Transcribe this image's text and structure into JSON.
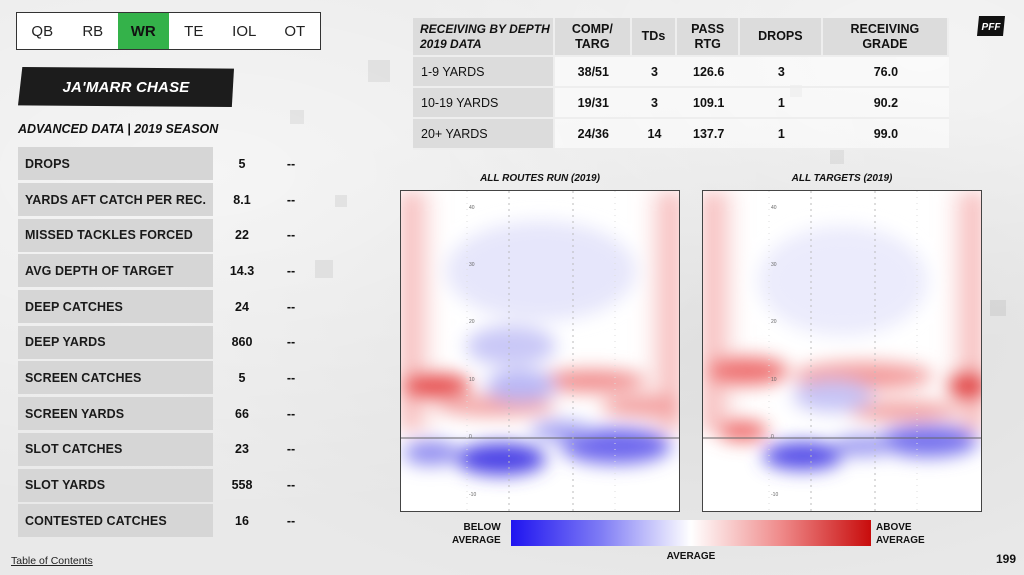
{
  "position_tabs": [
    {
      "label": "QB",
      "active": false
    },
    {
      "label": "RB",
      "active": false
    },
    {
      "label": "WR",
      "active": true
    },
    {
      "label": "TE",
      "active": false
    },
    {
      "label": "IOL",
      "active": false
    },
    {
      "label": "OT",
      "active": false
    }
  ],
  "player": {
    "name": "JA'MARR CHASE"
  },
  "advanced": {
    "heading": "ADVANCED DATA | 2019 SEASON",
    "rows": [
      {
        "label": "DROPS",
        "value": "5",
        "extra": "--"
      },
      {
        "label": "YARDS AFT CATCH PER REC.",
        "value": "8.1",
        "extra": "--"
      },
      {
        "label": "MISSED TACKLES FORCED",
        "value": "22",
        "extra": "--"
      },
      {
        "label": "AVG DEPTH OF TARGET",
        "value": "14.3",
        "extra": "--"
      },
      {
        "label": "DEEP CATCHES",
        "value": "24",
        "extra": "--"
      },
      {
        "label": "DEEP YARDS",
        "value": "860",
        "extra": "--"
      },
      {
        "label": "SCREEN CATCHES",
        "value": "5",
        "extra": "--"
      },
      {
        "label": "SCREEN YARDS",
        "value": "66",
        "extra": "--"
      },
      {
        "label": "SLOT CATCHES",
        "value": "23",
        "extra": "--"
      },
      {
        "label": "SLOT YARDS",
        "value": "558",
        "extra": "--"
      },
      {
        "label": "CONTESTED CATCHES",
        "value": "16",
        "extra": "--"
      }
    ]
  },
  "depth_table": {
    "title_line1": "RECEIVING BY DEPTH",
    "title_line2": "2019 DATA",
    "headers": [
      {
        "line1": "COMP/",
        "line2": "TARG"
      },
      {
        "line1": "TDs",
        "line2": ""
      },
      {
        "line1": "PASS",
        "line2": "RTG"
      },
      {
        "line1": "DROPS",
        "line2": ""
      },
      {
        "line1": "RECEIVING",
        "line2": "GRADE"
      }
    ],
    "rows": [
      {
        "label": "1-9 YARDS",
        "cells": [
          "38/51",
          "3",
          "126.6",
          "3",
          "76.0"
        ]
      },
      {
        "label": "10-19 YARDS",
        "cells": [
          "19/31",
          "3",
          "109.1",
          "1",
          "90.2"
        ]
      },
      {
        "label": "20+ YARDS",
        "cells": [
          "24/36",
          "14",
          "137.7",
          "1",
          "99.0"
        ]
      }
    ]
  },
  "heatmaps": [
    {
      "title": "ALL ROUTES RUN (2019)",
      "yard_labels": [
        "40",
        "30",
        "20",
        "10",
        "0",
        "-10"
      ]
    },
    {
      "title": "ALL TARGETS (2019)",
      "yard_labels": [
        "40",
        "30",
        "20",
        "10",
        "0",
        "-10"
      ]
    }
  ],
  "legend": {
    "below_line1": "BELOW",
    "below_line2": "AVERAGE",
    "above_line1": "ABOVE",
    "above_line2": "AVERAGE",
    "average": "AVERAGE",
    "low_color": "#1f14f0",
    "high_color": "#c80c0c"
  },
  "footer": {
    "toc_label": "Table of Contents",
    "page_number": "199"
  },
  "logo": {
    "text": "PFF"
  }
}
